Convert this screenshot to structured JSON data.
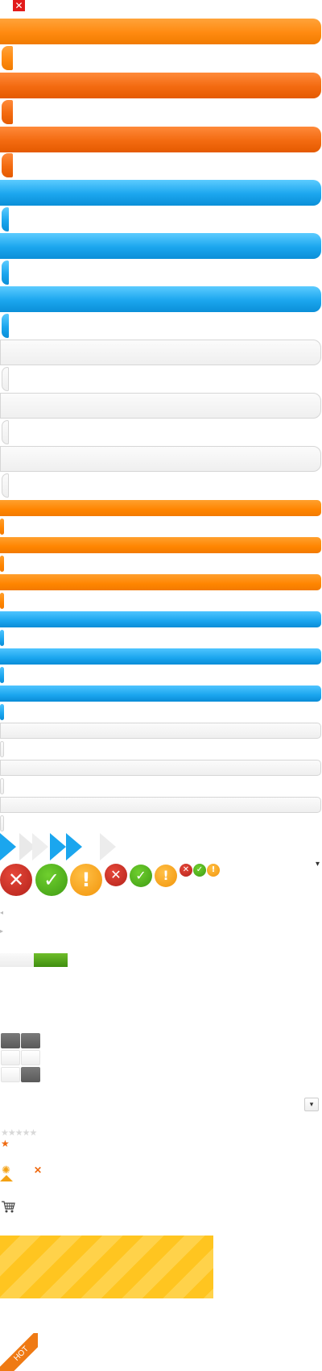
{
  "close_button": {
    "glyph": "✕"
  },
  "bars": {
    "large_orange_light": {
      "color": "#ff8a10"
    },
    "large_orange_dark": {
      "color": "#f36a10"
    },
    "large_blue": {
      "color": "#1ba6ee"
    },
    "large_gray": {
      "color": "#efefef"
    }
  },
  "chevrons": {
    "active_color": "#1ba6ee",
    "inactive_color": "#ececec"
  },
  "status_icons": {
    "error_glyph": "✕",
    "success_glyph": "✓",
    "warning_glyph": "!"
  },
  "dropdown": {
    "arrow_glyph": "▾"
  },
  "scroll_arrows": {
    "left": "◂",
    "right": "▸"
  },
  "progress": {
    "value_fraction": 0.5,
    "fill_color": "#4f9e16"
  },
  "rating": {
    "stars": "★★★★★",
    "value": 1,
    "max": 5,
    "selected_star": "★"
  },
  "icons": {
    "sun_glyph": "✺",
    "remove_glyph": "✕",
    "cart": "cart-icon"
  },
  "hot_ribbon": {
    "label": "HOT"
  }
}
